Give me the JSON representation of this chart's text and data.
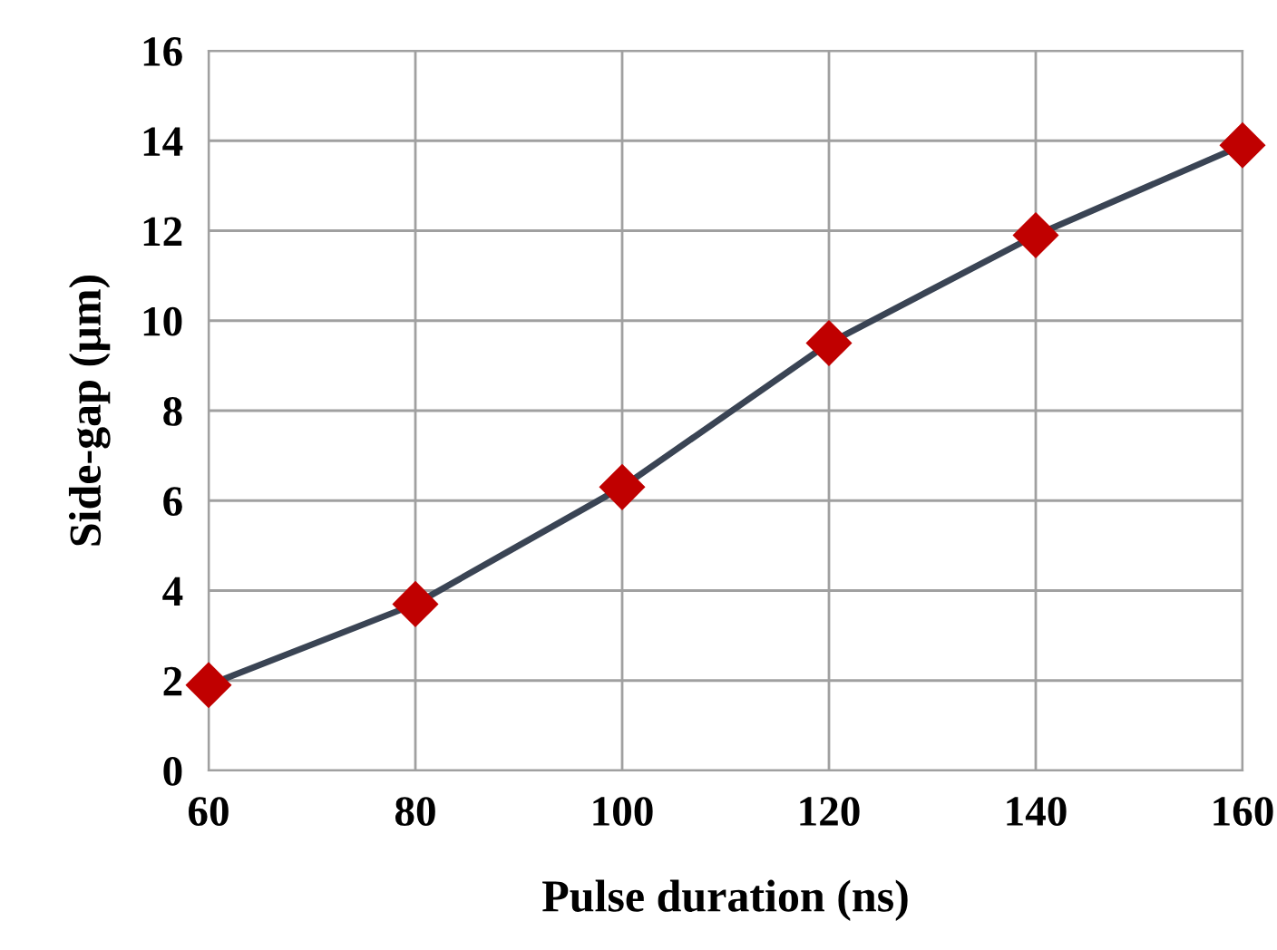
{
  "chart_data": {
    "type": "line",
    "xlabel": "Pulse duration (ns)",
    "ylabel": "Side-gap (µm)",
    "x": [
      60,
      80,
      100,
      120,
      140,
      160
    ],
    "series": [
      {
        "color": "#3a4454",
        "colors": [
          "#c00000",
          "#c00000",
          "#c00000",
          "#c00000",
          "#c00000",
          "#c00000"
        ],
        "values": [
          1.9,
          3.7,
          6.3,
          9.5,
          11.9,
          13.9
        ]
      }
    ],
    "xlim": [
      60,
      160
    ],
    "xticks": [
      60,
      80,
      100,
      120,
      140,
      160
    ],
    "ylim": [
      0,
      16
    ],
    "yticks": [
      0,
      2,
      4,
      6,
      8,
      10,
      12,
      14,
      16
    ],
    "grid": true,
    "marker": "diamond",
    "line_style": "solid"
  }
}
